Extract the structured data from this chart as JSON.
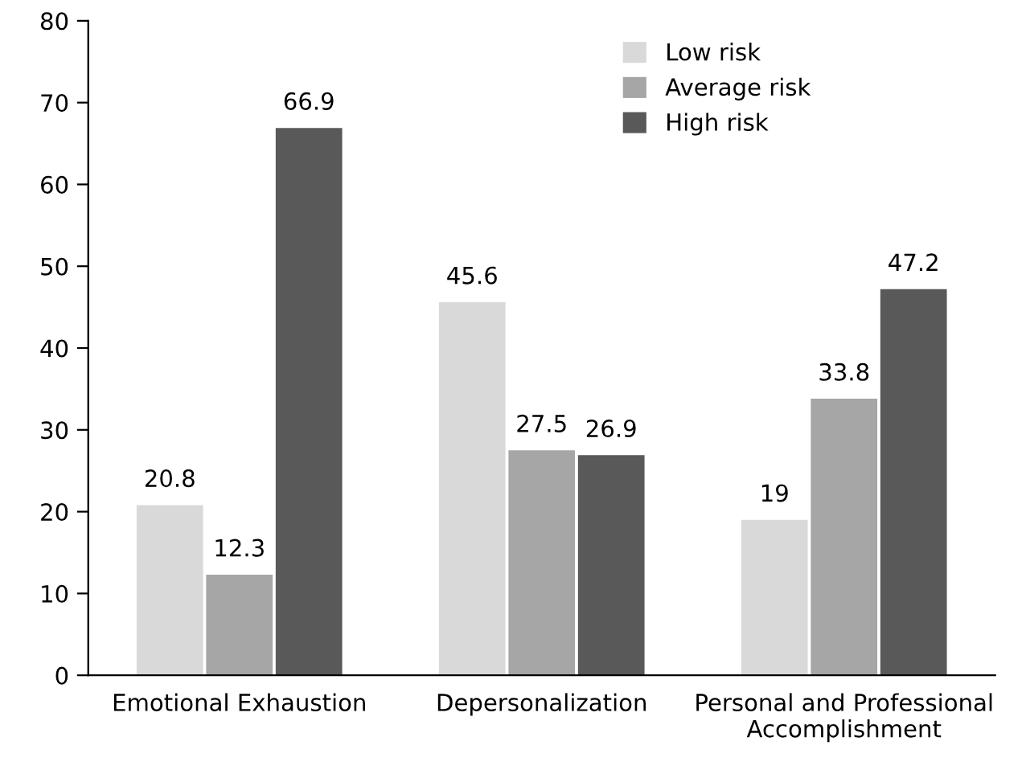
{
  "chart_data": {
    "type": "bar",
    "categories": [
      "Emotional Exhaustion",
      "Depersonalization",
      "Personal and Professional Accomplishment"
    ],
    "series": [
      {
        "name": "Low risk",
        "color": "#d9d9d9",
        "values": [
          20.8,
          45.6,
          19
        ]
      },
      {
        "name": "Average risk",
        "color": "#a6a6a6",
        "values": [
          12.3,
          27.5,
          33.8
        ]
      },
      {
        "name": "High risk",
        "color": "#595959",
        "values": [
          66.9,
          26.9,
          47.2
        ]
      }
    ],
    "ylim": [
      0,
      80
    ],
    "yticks": [
      0,
      10,
      20,
      30,
      40,
      50,
      60,
      70,
      80
    ],
    "data_labels": true,
    "grid": false,
    "legend": "top right"
  }
}
